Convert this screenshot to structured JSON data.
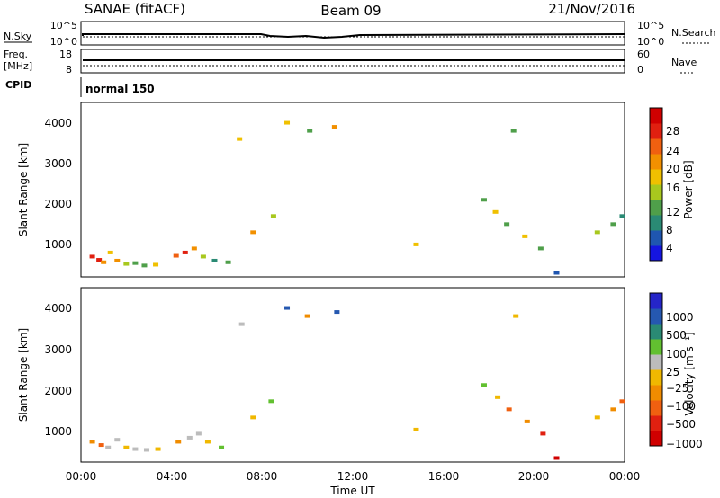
{
  "header": {
    "station": "SANAE (fitACF)",
    "beam": "Beam 09",
    "date": "21/Nov/2016"
  },
  "top_panels": {
    "nsky_label": "N.Sky",
    "nsky_ticks": [
      "10^5",
      "10^0"
    ],
    "nsearch_label": "N.Search",
    "nsearch_ticks": [
      "10^5",
      "10^0"
    ],
    "freq_label": "Freq.",
    "freq_unit": "[MHz]",
    "freq_ticks": [
      "18",
      "8"
    ],
    "nave_label": "Nave",
    "nave_ticks": [
      "60",
      "0"
    ],
    "cpid_label": "CPID",
    "cpid_value": "normal 150"
  },
  "colors": {
    "power": [
      "#1515e0",
      "#1f56b0",
      "#2a8a74",
      "#4f9f4a",
      "#a8c81e",
      "#f0c000",
      "#f29000",
      "#f06010",
      "#e02010",
      "#d00000"
    ],
    "velocity": [
      "#2525c8",
      "#2558b0",
      "#2a8a74",
      "#62c030",
      "#bcbcbc",
      "#f0b800",
      "#f08c00",
      "#f06010",
      "#e02010",
      "#d00000"
    ]
  },
  "chart_data": [
    {
      "type": "scatter",
      "panel": "power",
      "ylabel": "Slant Range [km]",
      "yticks": [
        "1000",
        "2000",
        "3000",
        "4000"
      ],
      "ylim": [
        200,
        4500
      ],
      "xlim": [
        0,
        24
      ],
      "colorbar_label": "Power [dB]",
      "colorbar_ticks": [
        "4",
        "8",
        "12",
        "16",
        "20",
        "24",
        "28"
      ],
      "colorbar_range": [
        0,
        32
      ],
      "points": [
        {
          "x": 0.5,
          "y": 700,
          "v": 26
        },
        {
          "x": 0.8,
          "y": 620,
          "v": 28
        },
        {
          "x": 1.0,
          "y": 560,
          "v": 22
        },
        {
          "x": 1.3,
          "y": 800,
          "v": 18
        },
        {
          "x": 1.6,
          "y": 600,
          "v": 20
        },
        {
          "x": 2.0,
          "y": 520,
          "v": 14
        },
        {
          "x": 2.4,
          "y": 540,
          "v": 12
        },
        {
          "x": 2.8,
          "y": 480,
          "v": 10
        },
        {
          "x": 3.3,
          "y": 500,
          "v": 16
        },
        {
          "x": 4.2,
          "y": 720,
          "v": 24
        },
        {
          "x": 4.6,
          "y": 800,
          "v": 28
        },
        {
          "x": 5.0,
          "y": 900,
          "v": 22
        },
        {
          "x": 5.4,
          "y": 700,
          "v": 14
        },
        {
          "x": 5.9,
          "y": 600,
          "v": 8
        },
        {
          "x": 6.5,
          "y": 560,
          "v": 10
        },
        {
          "x": 7.0,
          "y": 3600,
          "v": 16
        },
        {
          "x": 7.6,
          "y": 1300,
          "v": 20
        },
        {
          "x": 8.5,
          "y": 1700,
          "v": 14
        },
        {
          "x": 9.1,
          "y": 4000,
          "v": 16
        },
        {
          "x": 10.1,
          "y": 3800,
          "v": 12
        },
        {
          "x": 11.2,
          "y": 3900,
          "v": 20
        },
        {
          "x": 14.8,
          "y": 1000,
          "v": 18
        },
        {
          "x": 17.8,
          "y": 2100,
          "v": 10
        },
        {
          "x": 18.3,
          "y": 1800,
          "v": 16
        },
        {
          "x": 18.8,
          "y": 1500,
          "v": 12
        },
        {
          "x": 19.1,
          "y": 3800,
          "v": 12
        },
        {
          "x": 19.6,
          "y": 1200,
          "v": 16
        },
        {
          "x": 20.3,
          "y": 900,
          "v": 12
        },
        {
          "x": 21.0,
          "y": 300,
          "v": 6
        },
        {
          "x": 22.8,
          "y": 1300,
          "v": 14
        },
        {
          "x": 23.5,
          "y": 1500,
          "v": 10
        },
        {
          "x": 23.9,
          "y": 1700,
          "v": 8
        }
      ]
    },
    {
      "type": "scatter",
      "panel": "velocity",
      "ylabel": "Slant Range [km]",
      "yticks": [
        "1000",
        "2000",
        "3000",
        "4000"
      ],
      "ylim": [
        200,
        4500
      ],
      "xlim": [
        0,
        24
      ],
      "xlabel": "Time UT",
      "xticks": [
        "00:00",
        "04:00",
        "08:00",
        "12:00",
        "16:00",
        "20:00",
        "00:00"
      ],
      "colorbar_label": "Velocity [m s⁻¹]",
      "colorbar_ticks": [
        "1000",
        "500",
        "100",
        "25",
        "−25",
        "−100",
        "−500",
        "−1000"
      ],
      "colorbar_range": [
        -1000,
        1000
      ],
      "points": [
        {
          "x": 0.5,
          "y": 700,
          "v": -300
        },
        {
          "x": 0.9,
          "y": 620,
          "v": -500
        },
        {
          "x": 1.2,
          "y": 560,
          "v": 50
        },
        {
          "x": 1.6,
          "y": 750,
          "v": 120
        },
        {
          "x": 2.0,
          "y": 560,
          "v": 0
        },
        {
          "x": 2.4,
          "y": 520,
          "v": 150
        },
        {
          "x": 2.9,
          "y": 500,
          "v": 60
        },
        {
          "x": 3.4,
          "y": 520,
          "v": -80
        },
        {
          "x": 4.3,
          "y": 700,
          "v": -200
        },
        {
          "x": 4.8,
          "y": 800,
          "v": 120
        },
        {
          "x": 5.2,
          "y": 900,
          "v": 80
        },
        {
          "x": 5.6,
          "y": 700,
          "v": -150
        },
        {
          "x": 6.2,
          "y": 560,
          "v": 300
        },
        {
          "x": 7.1,
          "y": 3600,
          "v": 200
        },
        {
          "x": 7.6,
          "y": 1300,
          "v": -150
        },
        {
          "x": 8.4,
          "y": 1700,
          "v": 300
        },
        {
          "x": 9.1,
          "y": 4000,
          "v": 600
        },
        {
          "x": 10.0,
          "y": 3800,
          "v": -200
        },
        {
          "x": 11.3,
          "y": 3900,
          "v": 700
        },
        {
          "x": 14.8,
          "y": 1000,
          "v": -120
        },
        {
          "x": 17.8,
          "y": 2100,
          "v": 400
        },
        {
          "x": 18.4,
          "y": 1800,
          "v": -150
        },
        {
          "x": 18.9,
          "y": 1500,
          "v": -500
        },
        {
          "x": 19.2,
          "y": 3800,
          "v": -100
        },
        {
          "x": 19.7,
          "y": 1200,
          "v": -300
        },
        {
          "x": 20.4,
          "y": 900,
          "v": -600
        },
        {
          "x": 21.0,
          "y": 300,
          "v": -900
        },
        {
          "x": 22.8,
          "y": 1300,
          "v": -80
        },
        {
          "x": 23.5,
          "y": 1500,
          "v": -250
        },
        {
          "x": 23.9,
          "y": 1700,
          "v": -400
        }
      ]
    }
  ]
}
